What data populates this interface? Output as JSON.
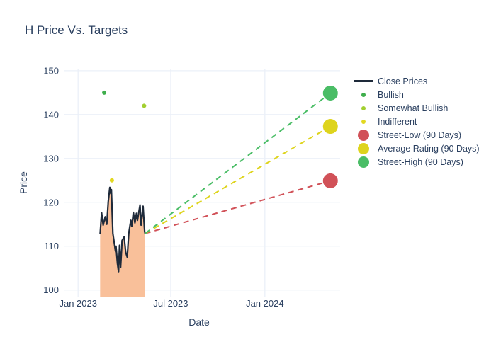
{
  "title": "H Price Vs. Targets",
  "colors": {
    "background": "#ffffff",
    "text": "#2a3f5f",
    "grid": "#ebf0f8",
    "close_line": "#1e2a3a",
    "close_fill": "#f9c09a",
    "bullish": "#3fae4c",
    "somewhat_bullish": "#a2cf30",
    "indifferent": "#e2d821",
    "street_low": "#d15158",
    "average_rating": "#ded41d",
    "street_high": "#4abd66"
  },
  "legend": {
    "items": [
      {
        "label": "Close Prices",
        "swatch": "line",
        "color_key": "close_line"
      },
      {
        "label": "Bullish",
        "swatch": "dot-small",
        "color_key": "bullish"
      },
      {
        "label": "Somewhat Bullish",
        "swatch": "dot-small",
        "color_key": "somewhat_bullish"
      },
      {
        "label": "Indifferent",
        "swatch": "dot-small",
        "color_key": "indifferent"
      },
      {
        "label": "Street-Low (90 Days)",
        "swatch": "dot-large",
        "color_key": "street_low"
      },
      {
        "label": "Average Rating (90 Days)",
        "swatch": "dot-large",
        "color_key": "average_rating"
      },
      {
        "label": "Street-High (90 Days)",
        "swatch": "dot-large",
        "color_key": "street_high"
      }
    ]
  },
  "chart_data": {
    "type": "line",
    "title": "H Price Vs. Targets",
    "xlabel": "Date",
    "ylabel": "Price",
    "grid": true,
    "legend_position": "right",
    "x_range": [
      "2022-12-04",
      "2024-05-27"
    ],
    "y_range": [
      98.5,
      150.3
    ],
    "y_ticks": [
      100,
      110,
      120,
      130,
      140,
      150
    ],
    "x_ticks": [
      {
        "date": "2023-01-01",
        "label": "Jan 2023"
      },
      {
        "date": "2023-07-01",
        "label": "Jul 2023"
      },
      {
        "date": "2024-01-01",
        "label": "Jan 2024"
      }
    ],
    "series": [
      {
        "name": "Close Prices",
        "kind": "line",
        "color_key": "close_line",
        "fill_key": "close_fill",
        "line_width": 2.2,
        "dates": [
          "2023-02-13",
          "2023-02-16",
          "2023-02-19",
          "2023-02-23",
          "2023-02-26",
          "2023-03-01",
          "2023-03-04",
          "2023-03-06",
          "2023-03-07",
          "2023-03-10",
          "2023-03-13",
          "2023-03-15",
          "2023-03-16",
          "2023-03-19",
          "2023-03-21",
          "2023-03-23",
          "2023-03-25",
          "2023-03-28",
          "2023-04-01",
          "2023-04-04",
          "2023-04-07",
          "2023-04-10",
          "2023-04-14",
          "2023-04-16",
          "2023-04-19",
          "2023-04-22",
          "2023-04-25",
          "2023-04-27",
          "2023-05-02",
          "2023-05-04",
          "2023-05-08",
          "2023-05-11",
          "2023-05-12"
        ],
        "values": [
          112.7,
          117.6,
          114.8,
          116.7,
          115.0,
          120.2,
          123.4,
          122.0,
          122.9,
          112.9,
          110.5,
          108.9,
          110.0,
          106.0,
          104.2,
          110.2,
          105.2,
          111.3,
          112.1,
          108.6,
          107.5,
          112.9,
          115.9,
          114.5,
          117.7,
          115.3,
          117.5,
          115.9,
          119.4,
          114.8,
          119.1,
          113.4,
          112.9
        ]
      },
      {
        "name": "Bullish",
        "kind": "scatter",
        "color_key": "bullish",
        "radius": 3,
        "points": [
          {
            "date": "2023-02-21",
            "value": 145.0
          }
        ]
      },
      {
        "name": "Somewhat Bullish",
        "kind": "scatter",
        "color_key": "somewhat_bullish",
        "radius": 3,
        "points": [
          {
            "date": "2023-05-10",
            "value": 142.0
          }
        ]
      },
      {
        "name": "Indifferent",
        "kind": "scatter",
        "color_key": "indifferent",
        "radius": 3,
        "points": [
          {
            "date": "2023-03-08",
            "value": 125.0
          }
        ]
      },
      {
        "name": "Street-Low (90 Days)",
        "kind": "target",
        "color_key": "street_low",
        "radius": 10.5,
        "dash": "8,6",
        "point": {
          "date": "2024-05-08",
          "value": 124.9
        }
      },
      {
        "name": "Average Rating (90 Days)",
        "kind": "target",
        "color_key": "average_rating",
        "radius": 10.5,
        "dash": "8,6",
        "point": {
          "date": "2024-05-08",
          "value": 137.3
        }
      },
      {
        "name": "Street-High (90 Days)",
        "kind": "target",
        "color_key": "street_high",
        "radius": 10.5,
        "dash": "8,6",
        "point": {
          "date": "2024-05-08",
          "value": 144.9
        }
      }
    ]
  }
}
